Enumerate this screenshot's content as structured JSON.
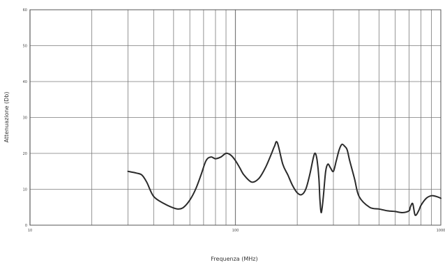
{
  "chart_data": {
    "type": "line",
    "xlabel": "Frequenza (MHz)",
    "ylabel": "Attenuazione (Db)",
    "x_scale": "log",
    "xlim": [
      10,
      1000
    ],
    "ylim": [
      0,
      60
    ],
    "x_tick_labels": [
      "10",
      "100",
      "1000"
    ],
    "y_tick_labels": [
      "0",
      "10",
      "20",
      "30",
      "40",
      "50",
      "60"
    ],
    "grid": true,
    "colors": {
      "line": "#2a2a2a",
      "grid": "#7a7a7a",
      "background": "#ffffff"
    },
    "series": [
      {
        "x": [
          30,
          33,
          35,
          37,
          40,
          45,
          50,
          53,
          56,
          60,
          64,
          68,
          72,
          76,
          80,
          85,
          90,
          95,
          100,
          105,
          110,
          120,
          130,
          140,
          150,
          155,
          160,
          170,
          180,
          190,
          200,
          210,
          220,
          230,
          240,
          245,
          250,
          255,
          258,
          262,
          268,
          275,
          282,
          290,
          300,
          310,
          320,
          330,
          340,
          350,
          360,
          380,
          400,
          450,
          500,
          550,
          600,
          650,
          700,
          710,
          730,
          750,
          780,
          800,
          850,
          900,
          950,
          1000
        ],
        "y": [
          15,
          14.5,
          14,
          12,
          8,
          6,
          4.8,
          4.5,
          5,
          7,
          10,
          14,
          18,
          19,
          18.5,
          19,
          20,
          19.5,
          18,
          16,
          14,
          12,
          13,
          16,
          20,
          22,
          23,
          17,
          14,
          11,
          9,
          8.5,
          10,
          14,
          19,
          20,
          18,
          13,
          7,
          3.5,
          8,
          15,
          17,
          16,
          15,
          18,
          21,
          22.5,
          22,
          21,
          18,
          13,
          8,
          5,
          4.5,
          4,
          3.8,
          3.5,
          4,
          5,
          6,
          2.8,
          4,
          5.5,
          7.5,
          8.2,
          8,
          7.5
        ]
      }
    ]
  }
}
